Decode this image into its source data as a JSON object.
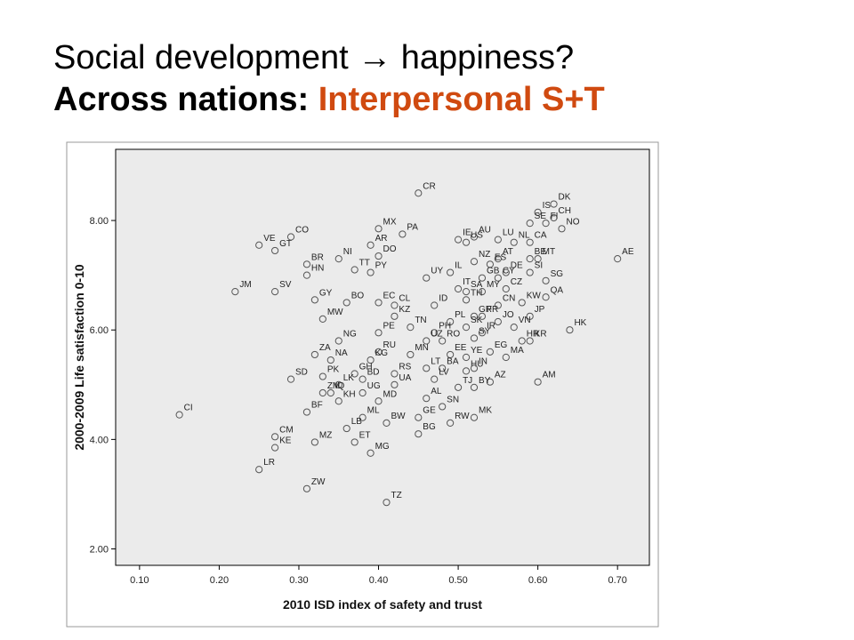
{
  "title": {
    "line1_pre": "Social development",
    "arrow_icon": "right-arrow",
    "line1_post": "happiness?",
    "line2_black": "Across nations:",
    "line2_accent": "Interpersonal S+T",
    "accent_color": "#d04a10"
  },
  "chart_data": {
    "type": "scatter",
    "xlabel": "2010 ISD index of safety and trust",
    "ylabel": "2000-2009 Life satisfaction 0-10",
    "xlim": [
      0.07,
      0.74
    ],
    "ylim": [
      1.7,
      9.3
    ],
    "xticks": [
      "0.10",
      "0.20",
      "0.30",
      "0.40",
      "0.50",
      "0.60",
      "0.70"
    ],
    "yticks": [
      "2.00",
      "4.00",
      "6.00",
      "8.00"
    ],
    "grid": false,
    "plot_background": "#ebebeb",
    "marker_color": "#555555",
    "points": [
      {
        "label": "CR",
        "x": 0.45,
        "y": 8.5
      },
      {
        "label": "DK",
        "x": 0.62,
        "y": 8.3
      },
      {
        "label": "IS",
        "x": 0.6,
        "y": 8.15
      },
      {
        "label": "CH",
        "x": 0.62,
        "y": 8.05
      },
      {
        "label": "SE",
        "x": 0.59,
        "y": 7.95
      },
      {
        "label": "FI",
        "x": 0.61,
        "y": 7.95
      },
      {
        "label": "NO",
        "x": 0.63,
        "y": 7.85
      },
      {
        "label": "MX",
        "x": 0.4,
        "y": 7.85
      },
      {
        "label": "PA",
        "x": 0.43,
        "y": 7.75
      },
      {
        "label": "AU",
        "x": 0.52,
        "y": 7.7
      },
      {
        "label": "IE",
        "x": 0.5,
        "y": 7.65
      },
      {
        "label": "LU",
        "x": 0.55,
        "y": 7.65
      },
      {
        "label": "CO",
        "x": 0.29,
        "y": 7.7
      },
      {
        "label": "VE",
        "x": 0.25,
        "y": 7.55
      },
      {
        "label": "US",
        "x": 0.51,
        "y": 7.6
      },
      {
        "label": "NL",
        "x": 0.57,
        "y": 7.6
      },
      {
        "label": "CA",
        "x": 0.59,
        "y": 7.6
      },
      {
        "label": "AE",
        "x": 0.7,
        "y": 7.3
      },
      {
        "label": "GT",
        "x": 0.27,
        "y": 7.45
      },
      {
        "label": "AR",
        "x": 0.39,
        "y": 7.55
      },
      {
        "label": "DO",
        "x": 0.4,
        "y": 7.35
      },
      {
        "label": "BR",
        "x": 0.31,
        "y": 7.2
      },
      {
        "label": "NI",
        "x": 0.35,
        "y": 7.3
      },
      {
        "label": "TT",
        "x": 0.37,
        "y": 7.1
      },
      {
        "label": "BE",
        "x": 0.59,
        "y": 7.3
      },
      {
        "label": "MT",
        "x": 0.6,
        "y": 7.3
      },
      {
        "label": "AT",
        "x": 0.55,
        "y": 7.3
      },
      {
        "label": "NZ",
        "x": 0.52,
        "y": 7.25
      },
      {
        "label": "ES",
        "x": 0.54,
        "y": 7.2
      },
      {
        "label": "DE",
        "x": 0.56,
        "y": 7.05
      },
      {
        "label": "SI",
        "x": 0.59,
        "y": 7.05
      },
      {
        "label": "PY",
        "x": 0.39,
        "y": 7.05
      },
      {
        "label": "IL",
        "x": 0.49,
        "y": 7.05
      },
      {
        "label": "GB",
        "x": 0.53,
        "y": 6.95
      },
      {
        "label": "CY",
        "x": 0.55,
        "y": 6.95
      },
      {
        "label": "SG",
        "x": 0.61,
        "y": 6.9
      },
      {
        "label": "UY",
        "x": 0.46,
        "y": 6.95
      },
      {
        "label": "SV",
        "x": 0.27,
        "y": 6.7
      },
      {
        "label": "JM",
        "x": 0.22,
        "y": 6.7
      },
      {
        "label": "HN",
        "x": 0.31,
        "y": 7.0
      },
      {
        "label": "IT",
        "x": 0.5,
        "y": 6.75
      },
      {
        "label": "CZ",
        "x": 0.56,
        "y": 6.75
      },
      {
        "label": "SA",
        "x": 0.51,
        "y": 6.7
      },
      {
        "label": "MY",
        "x": 0.53,
        "y": 6.7
      },
      {
        "label": "QA",
        "x": 0.61,
        "y": 6.6
      },
      {
        "label": "GY",
        "x": 0.32,
        "y": 6.55
      },
      {
        "label": "BO",
        "x": 0.36,
        "y": 6.5
      },
      {
        "label": "EC",
        "x": 0.4,
        "y": 6.5
      },
      {
        "label": "KW",
        "x": 0.58,
        "y": 6.5
      },
      {
        "label": "TH",
        "x": 0.51,
        "y": 6.55
      },
      {
        "label": "CL",
        "x": 0.42,
        "y": 6.45
      },
      {
        "label": "CN",
        "x": 0.55,
        "y": 6.45
      },
      {
        "label": "ID",
        "x": 0.47,
        "y": 6.45
      },
      {
        "label": "MW",
        "x": 0.33,
        "y": 6.2
      },
      {
        "label": "KZ",
        "x": 0.42,
        "y": 6.25
      },
      {
        "label": "JP",
        "x": 0.59,
        "y": 6.25
      },
      {
        "label": "GR",
        "x": 0.52,
        "y": 6.25
      },
      {
        "label": "FR",
        "x": 0.53,
        "y": 6.25
      },
      {
        "label": "HK",
        "x": 0.64,
        "y": 6.0
      },
      {
        "label": "JO",
        "x": 0.55,
        "y": 6.15
      },
      {
        "label": "PL",
        "x": 0.49,
        "y": 6.15
      },
      {
        "label": "TN",
        "x": 0.44,
        "y": 6.05
      },
      {
        "label": "PH",
        "x": 0.47,
        "y": 5.95
      },
      {
        "label": "SK",
        "x": 0.51,
        "y": 6.05
      },
      {
        "label": "VN",
        "x": 0.57,
        "y": 6.05
      },
      {
        "label": "PE",
        "x": 0.4,
        "y": 5.95
      },
      {
        "label": "IR",
        "x": 0.53,
        "y": 5.95
      },
      {
        "label": "SY",
        "x": 0.52,
        "y": 5.85
      },
      {
        "label": "NG",
        "x": 0.35,
        "y": 5.8
      },
      {
        "label": "UZ",
        "x": 0.46,
        "y": 5.8
      },
      {
        "label": "RO",
        "x": 0.48,
        "y": 5.8
      },
      {
        "label": "HR",
        "x": 0.58,
        "y": 5.8
      },
      {
        "label": "KR",
        "x": 0.59,
        "y": 5.8
      },
      {
        "label": "ZA",
        "x": 0.32,
        "y": 5.55
      },
      {
        "label": "RU",
        "x": 0.4,
        "y": 5.6
      },
      {
        "label": "MN",
        "x": 0.44,
        "y": 5.55
      },
      {
        "label": "EE",
        "x": 0.49,
        "y": 5.55
      },
      {
        "label": "YE",
        "x": 0.51,
        "y": 5.5
      },
      {
        "label": "EG",
        "x": 0.54,
        "y": 5.6
      },
      {
        "label": "MA",
        "x": 0.56,
        "y": 5.5
      },
      {
        "label": "NA",
        "x": 0.34,
        "y": 5.45
      },
      {
        "label": "KG",
        "x": 0.39,
        "y": 5.45
      },
      {
        "label": "LT",
        "x": 0.46,
        "y": 5.3
      },
      {
        "label": "BA",
        "x": 0.48,
        "y": 5.3
      },
      {
        "label": "HU",
        "x": 0.51,
        "y": 5.25
      },
      {
        "label": "IN",
        "x": 0.52,
        "y": 5.3
      },
      {
        "label": "AM",
        "x": 0.6,
        "y": 5.05
      },
      {
        "label": "SD",
        "x": 0.29,
        "y": 5.1
      },
      {
        "label": "PK",
        "x": 0.33,
        "y": 5.15
      },
      {
        "label": "GH",
        "x": 0.37,
        "y": 5.2
      },
      {
        "label": "BD",
        "x": 0.38,
        "y": 5.1
      },
      {
        "label": "RS",
        "x": 0.42,
        "y": 5.2
      },
      {
        "label": "LV",
        "x": 0.47,
        "y": 5.1
      },
      {
        "label": "AZ",
        "x": 0.54,
        "y": 5.05
      },
      {
        "label": "TJ",
        "x": 0.5,
        "y": 4.95
      },
      {
        "label": "BY",
        "x": 0.52,
        "y": 4.95
      },
      {
        "label": "LK",
        "x": 0.35,
        "y": 5.0
      },
      {
        "label": "UA",
        "x": 0.42,
        "y": 5.0
      },
      {
        "label": "ZM",
        "x": 0.33,
        "y": 4.85
      },
      {
        "label": "IQ",
        "x": 0.34,
        "y": 4.85
      },
      {
        "label": "UG",
        "x": 0.38,
        "y": 4.85
      },
      {
        "label": "KH",
        "x": 0.35,
        "y": 4.7
      },
      {
        "label": "MD",
        "x": 0.4,
        "y": 4.7
      },
      {
        "label": "AL",
        "x": 0.46,
        "y": 4.75
      },
      {
        "label": "SN",
        "x": 0.48,
        "y": 4.6
      },
      {
        "label": "BF",
        "x": 0.31,
        "y": 4.5
      },
      {
        "label": "CI",
        "x": 0.15,
        "y": 4.45
      },
      {
        "label": "ML",
        "x": 0.38,
        "y": 4.4
      },
      {
        "label": "BW",
        "x": 0.41,
        "y": 4.3
      },
      {
        "label": "GE",
        "x": 0.45,
        "y": 4.4
      },
      {
        "label": "RW",
        "x": 0.49,
        "y": 4.3
      },
      {
        "label": "MK",
        "x": 0.52,
        "y": 4.4
      },
      {
        "label": "LB",
        "x": 0.36,
        "y": 4.2
      },
      {
        "label": "CM",
        "x": 0.27,
        "y": 4.05
      },
      {
        "label": "MZ",
        "x": 0.32,
        "y": 3.95
      },
      {
        "label": "KE",
        "x": 0.27,
        "y": 3.85
      },
      {
        "label": "ET",
        "x": 0.37,
        "y": 3.95
      },
      {
        "label": "MG",
        "x": 0.39,
        "y": 3.75
      },
      {
        "label": "BG",
        "x": 0.45,
        "y": 4.1
      },
      {
        "label": "LR",
        "x": 0.25,
        "y": 3.45
      },
      {
        "label": "ZW",
        "x": 0.31,
        "y": 3.1
      },
      {
        "label": "TZ",
        "x": 0.41,
        "y": 2.85
      }
    ]
  }
}
